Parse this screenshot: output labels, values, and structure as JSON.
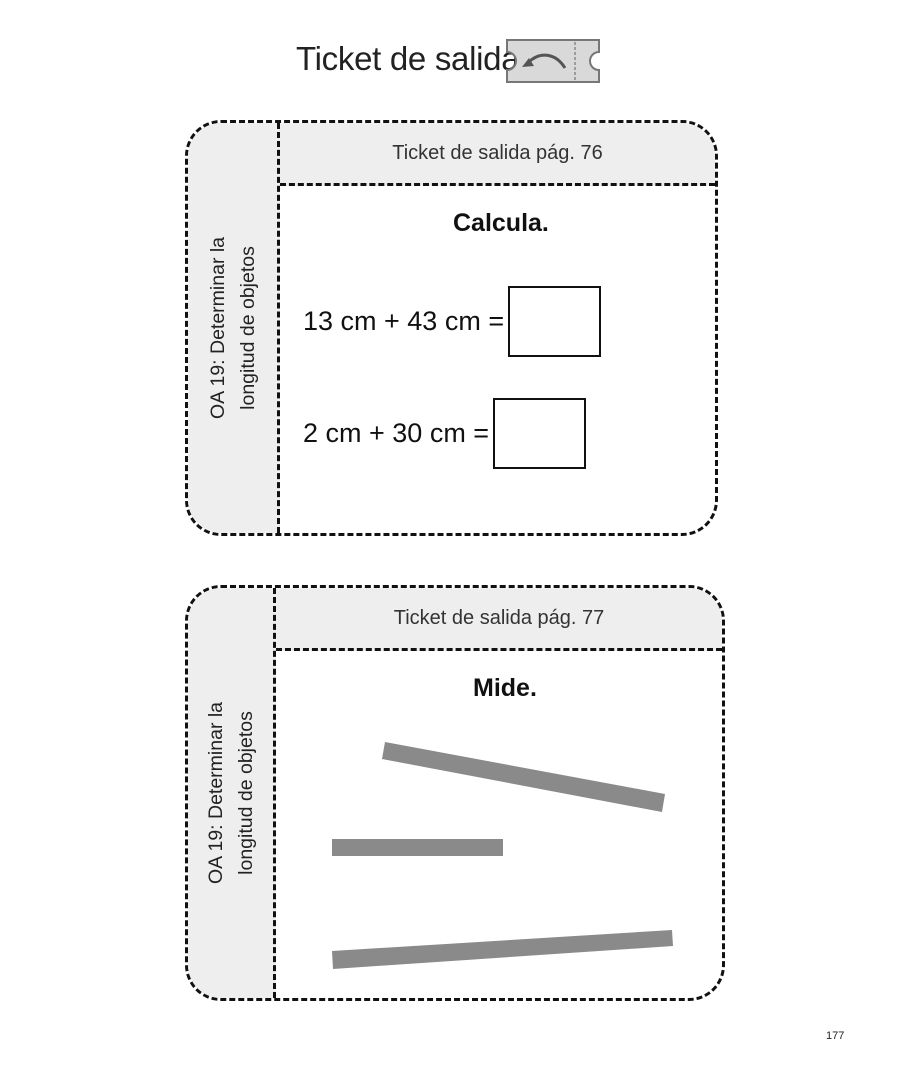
{
  "header": {
    "title": "Ticket de salida",
    "icon": "ticket-return-icon"
  },
  "cards": [
    {
      "side_label": [
        "OA 19: Determinar la",
        "longitud de objetos"
      ],
      "heading": "Ticket de salida pág. 76",
      "instruction": "Calcula.",
      "equations": [
        {
          "text": "13 cm + 43 cm =",
          "answer": ""
        },
        {
          "text": "2 cm + 30 cm =",
          "answer": ""
        }
      ]
    },
    {
      "side_label": [
        "OA 19: Determinar la",
        "longitud de objetos"
      ],
      "heading": "Ticket de salida pág. 77",
      "instruction": "Mide.",
      "bars_to_measure": 3,
      "bar_color": "#8a8a8a"
    }
  ],
  "page_number": "177",
  "colors": {
    "panel_fill": "#eeeeee",
    "border": "#111111",
    "icon_fill": "#d9d9d9"
  }
}
